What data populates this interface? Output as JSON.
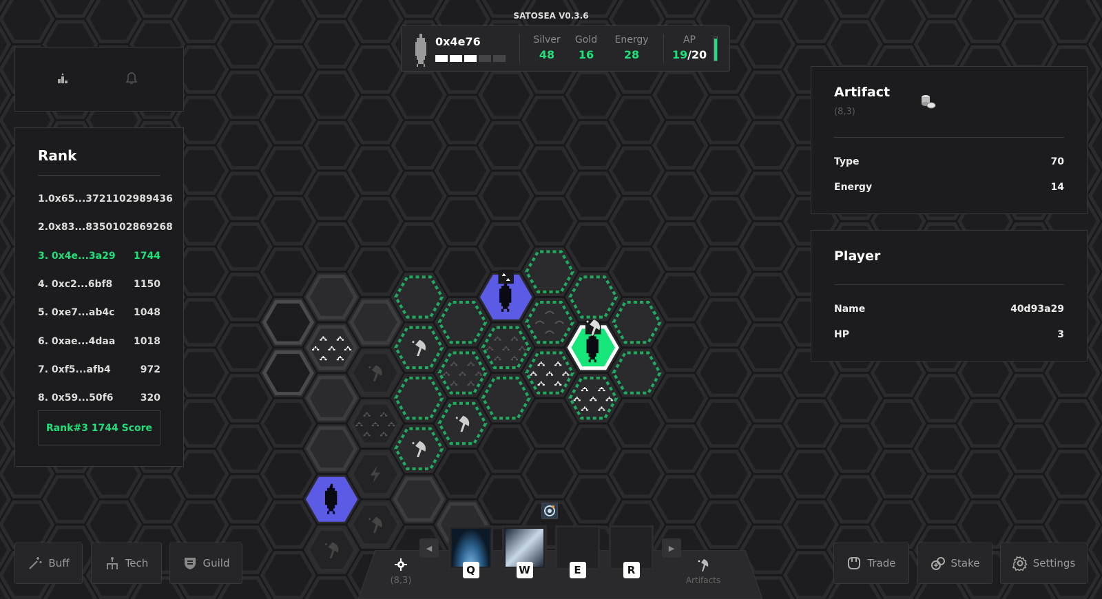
{
  "app_title": "SATOSEA V0.3.6",
  "colors": {
    "accent": "#1fe07a",
    "player_self": "#16e57a",
    "player_other": "#5b5be6",
    "dashed_border": "#1faa5e"
  },
  "hud": {
    "player_name": "0x4e76",
    "hp_filled": 3,
    "hp_total": 5,
    "stats": [
      {
        "label": "Silver",
        "value": "48"
      },
      {
        "label": "Gold",
        "value": "16"
      },
      {
        "label": "Energy",
        "value": "28"
      }
    ],
    "ap_label": "AP",
    "ap_current": "19",
    "ap_max": "/20",
    "ap_fraction": 0.95
  },
  "top_left_icons": [
    "leaderboard-icon",
    "bell-icon"
  ],
  "rank": {
    "title": "Rank",
    "entries": [
      {
        "label": "1.0x65...3721102989436",
        "score": ""
      },
      {
        "label": "2.0x83...8350102869268",
        "score": ""
      },
      {
        "label": "3.  0x4e...3a29",
        "score": "1744",
        "me": true
      },
      {
        "label": "4.  0xc2...6bf8",
        "score": "1150"
      },
      {
        "label": "5.  0xe7...ab4c",
        "score": "1048"
      },
      {
        "label": "6.  0xae...4daa",
        "score": "1018"
      },
      {
        "label": "7.  0xf5...afb4",
        "score": "972"
      },
      {
        "label": "8.  0x59...50f6",
        "score": "320"
      }
    ],
    "my_score": "Rank#3 1744 Score"
  },
  "artifact": {
    "title": "Artifact",
    "coords": "(8,3)",
    "icon": "coins-icon",
    "fields": [
      {
        "label": "Type",
        "value": "70"
      },
      {
        "label": "Energy",
        "value": "14"
      }
    ]
  },
  "player": {
    "title": "Player",
    "fields": [
      {
        "label": "Name",
        "value": "40d93a29"
      },
      {
        "label": "HP",
        "value": "3"
      }
    ]
  },
  "left_buttons": [
    {
      "label": "Buff",
      "icon": "magic-wand-icon"
    },
    {
      "label": "Tech",
      "icon": "tech-tree-icon"
    },
    {
      "label": "Guild",
      "icon": "shield-icon"
    }
  ],
  "right_buttons": [
    {
      "label": "Trade",
      "icon": "trade-icon"
    },
    {
      "label": "Stake",
      "icon": "stake-icon"
    },
    {
      "label": "Settings",
      "icon": "gear-icon"
    }
  ],
  "toolbar": {
    "location_label": "(8,3)",
    "artifacts_label": "Artifacts",
    "skills": [
      {
        "key": "Q",
        "filled": true
      },
      {
        "key": "W",
        "filled": true
      },
      {
        "key": "E",
        "filled": false
      },
      {
        "key": "R",
        "filled": false
      }
    ]
  },
  "map": {
    "tiles": [
      {
        "c": 0,
        "r": 1,
        "kind": "outline"
      },
      {
        "c": 0,
        "r": 2,
        "kind": "outline"
      },
      {
        "c": 1,
        "r": 1,
        "kind": "plain"
      },
      {
        "c": 1,
        "r": 2,
        "kind": "plain",
        "content": "mountains"
      },
      {
        "c": 1,
        "r": 3,
        "kind": "plain"
      },
      {
        "c": 1,
        "r": 4,
        "kind": "plain"
      },
      {
        "c": 1,
        "r": 5,
        "kind": "player-other"
      },
      {
        "c": 1,
        "r": 6,
        "kind": "dark",
        "content": "artifact-faint"
      },
      {
        "c": 2,
        "r": 1,
        "kind": "plain"
      },
      {
        "c": 2,
        "r": 2,
        "kind": "dark",
        "content": "artifact-faint"
      },
      {
        "c": 2,
        "r": 3,
        "kind": "dark",
        "content": "mountains-faint"
      },
      {
        "c": 2,
        "r": 4,
        "kind": "dark",
        "content": "lightning"
      },
      {
        "c": 2,
        "r": 5,
        "kind": "dark",
        "content": "artifact-faint"
      },
      {
        "c": 3,
        "r": 1,
        "kind": "reach"
      },
      {
        "c": 3,
        "r": 2,
        "kind": "reach",
        "content": "artifact"
      },
      {
        "c": 3,
        "r": 3,
        "kind": "reach"
      },
      {
        "c": 3,
        "r": 4,
        "kind": "reach",
        "content": "artifact"
      },
      {
        "c": 3,
        "r": 5,
        "kind": "plain"
      },
      {
        "c": 4,
        "r": 1,
        "kind": "reach"
      },
      {
        "c": 4,
        "r": 2,
        "kind": "reach",
        "content": "mountains-faint"
      },
      {
        "c": 4,
        "r": 3,
        "kind": "reach",
        "content": "artifact"
      },
      {
        "c": 4,
        "r": 5,
        "kind": "plain"
      },
      {
        "c": 5,
        "r": 1,
        "kind": "player-other",
        "badge": "mountains"
      },
      {
        "c": 5,
        "r": 2,
        "kind": "reach",
        "content": "mountains-faint"
      },
      {
        "c": 5,
        "r": 3,
        "kind": "reach"
      },
      {
        "c": 6,
        "r": 0,
        "kind": "reach"
      },
      {
        "c": 6,
        "r": 1,
        "kind": "reach",
        "content": "hills-faint"
      },
      {
        "c": 6,
        "r": 2,
        "kind": "reach",
        "content": "mountains"
      },
      {
        "c": 7,
        "r": 1,
        "kind": "reach"
      },
      {
        "c": 7,
        "r": 2,
        "kind": "player-self",
        "badge": "artifact"
      },
      {
        "c": 7,
        "r": 3,
        "kind": "reach",
        "content": "mountains"
      },
      {
        "c": 8,
        "r": 1,
        "kind": "reach"
      },
      {
        "c": 8,
        "r": 2,
        "kind": "reach"
      }
    ]
  }
}
